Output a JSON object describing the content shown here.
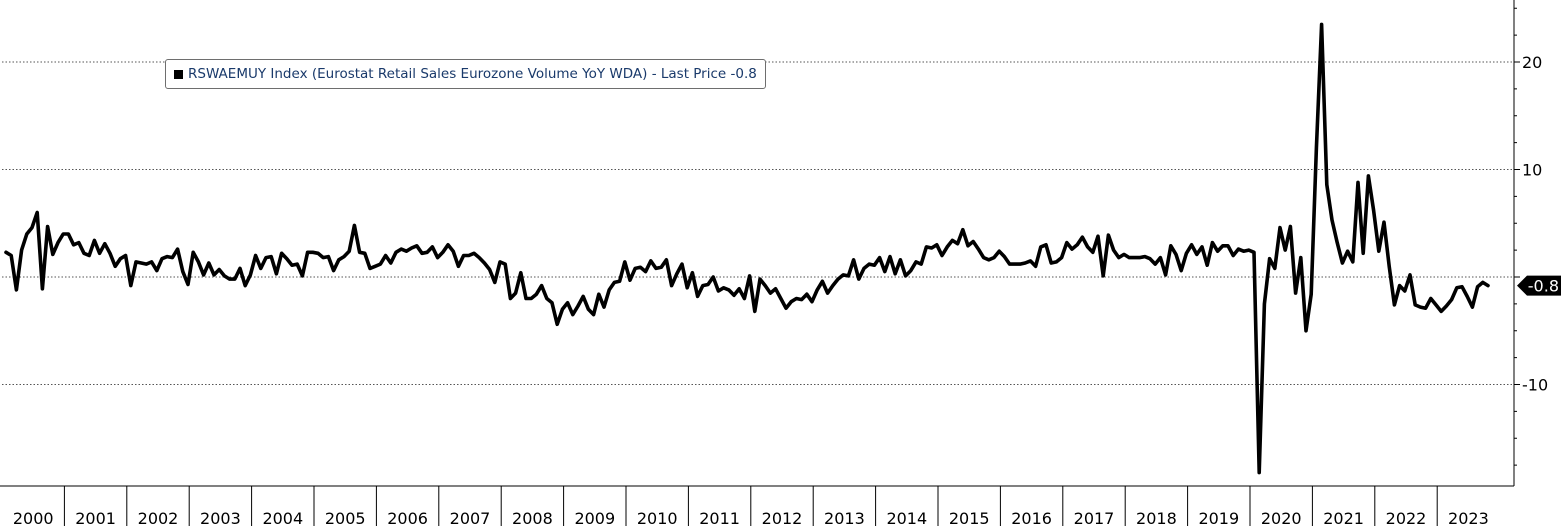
{
  "legend": {
    "text": "RSWAEMUY Index (Eurostat Retail Sales Eurozone Volume YoY WDA) - Last Price -0.8"
  },
  "last_price_label": "-0.8",
  "colors": {
    "line": "#000000",
    "grid": "#555555",
    "legend_text": "#1a3a6b",
    "background": "#ffffff"
  },
  "chart_data": {
    "type": "line",
    "title": "",
    "xlabel": "",
    "ylabel": "",
    "x_start": "2000-01",
    "x_end": "2023-12",
    "ylim": [
      -19,
      25
    ],
    "yticks": [
      20,
      10,
      0,
      -10
    ],
    "ytick_labels": [
      "20",
      "10",
      "",
      "-10"
    ],
    "xtick_labels": [
      "2000",
      "2001",
      "2002",
      "2003",
      "2004",
      "2005",
      "2006",
      "2007",
      "2008",
      "2009",
      "2010",
      "2011",
      "2012",
      "2013",
      "2014",
      "2015",
      "2016",
      "2017",
      "2018",
      "2019",
      "2020",
      "2021",
      "2022",
      "2023"
    ],
    "grid": "horizontal dotted",
    "legend_position": "top-left",
    "series": [
      {
        "name": "RSWAEMUY Index (Eurostat Retail Sales Eurozone Volume YoY WDA)",
        "values": [
          2.3,
          2.0,
          -1.2,
          2.5,
          4.0,
          4.6,
          6.0,
          -1.1,
          4.7,
          2.1,
          3.2,
          4.0,
          4.0,
          3.0,
          3.2,
          2.2,
          2.0,
          3.4,
          2.2,
          3.1,
          2.2,
          1.0,
          1.7,
          2.0,
          -0.8,
          1.4,
          1.3,
          1.2,
          1.4,
          0.6,
          1.7,
          1.9,
          1.8,
          2.6,
          0.5,
          -0.7,
          2.3,
          1.4,
          0.2,
          1.3,
          0.2,
          0.7,
          0.1,
          -0.2,
          -0.2,
          0.8,
          -0.8,
          0.2,
          2.0,
          0.8,
          1.8,
          1.9,
          0.3,
          2.2,
          1.7,
          1.1,
          1.2,
          0.1,
          2.3,
          2.3,
          2.2,
          1.8,
          1.9,
          0.6,
          1.6,
          1.9,
          2.4,
          4.8,
          2.3,
          2.2,
          0.8,
          1.0,
          1.2,
          2.0,
          1.3,
          2.3,
          2.6,
          2.4,
          2.7,
          2.9,
          2.2,
          2.3,
          2.8,
          1.8,
          2.3,
          3.0,
          2.4,
          1.0,
          2.0,
          2.0,
          2.2,
          1.8,
          1.3,
          0.7,
          -0.5,
          1.4,
          1.2,
          -2.0,
          -1.5,
          0.4,
          -2.0,
          -2.0,
          -1.6,
          -0.8,
          -2.0,
          -2.4,
          -4.4,
          -3.0,
          -2.4,
          -3.5,
          -2.7,
          -1.8,
          -3.0,
          -3.5,
          -1.6,
          -2.8,
          -1.2,
          -0.5,
          -0.4,
          1.4,
          -0.3,
          0.8,
          0.9,
          0.5,
          1.5,
          0.8,
          0.9,
          1.6,
          -0.8,
          0.3,
          1.2,
          -1.0,
          0.4,
          -1.8,
          -0.8,
          -0.7,
          0.0,
          -1.3,
          -1.0,
          -1.2,
          -1.7,
          -1.1,
          -2.0,
          0.1,
          -3.2,
          -0.2,
          -0.8,
          -1.5,
          -1.1,
          -2.0,
          -2.9,
          -2.3,
          -2.0,
          -2.1,
          -1.6,
          -2.3,
          -1.2,
          -0.4,
          -1.5,
          -0.8,
          -0.2,
          0.2,
          0.1,
          1.6,
          -0.2,
          0.8,
          1.2,
          1.1,
          1.8,
          0.5,
          1.9,
          0.3,
          1.6,
          0.1,
          0.6,
          1.4,
          1.2,
          2.8,
          2.7,
          3.0,
          2.0,
          2.8,
          3.4,
          3.1,
          4.4,
          2.9,
          3.3,
          2.6,
          1.8,
          1.6,
          1.8,
          2.4,
          1.9,
          1.2,
          1.2,
          1.2,
          1.3,
          1.5,
          1.0,
          2.8,
          3.0,
          1.3,
          1.4,
          1.8,
          3.2,
          2.6,
          3.0,
          3.7,
          2.8,
          2.3,
          3.8,
          0.1,
          3.9,
          2.5,
          1.8,
          2.1,
          1.8,
          1.8,
          1.8,
          1.9,
          1.7,
          1.2,
          1.8,
          0.2,
          2.9,
          2.1,
          0.6,
          2.2,
          3.0,
          2.1,
          2.8,
          1.1,
          3.2,
          2.4,
          2.9,
          2.9,
          2.0,
          2.6,
          2.4,
          2.5,
          2.3,
          -18.2,
          -2.5,
          1.7,
          0.8,
          4.6,
          2.5,
          4.7,
          -1.5,
          1.8,
          -5.0,
          -1.6,
          12.0,
          23.5,
          8.6,
          5.3,
          3.2,
          1.3,
          2.4,
          1.4,
          8.8,
          2.2,
          9.4,
          6.2,
          2.4,
          5.1,
          1.0,
          -2.6,
          -0.8,
          -1.3,
          0.2,
          -2.6,
          -2.8,
          -2.9,
          -2.0,
          -2.6,
          -3.2,
          -2.7,
          -2.1,
          -1.0,
          -0.9,
          -1.8,
          -2.8,
          -0.9,
          -0.5,
          -0.8
        ]
      }
    ]
  }
}
